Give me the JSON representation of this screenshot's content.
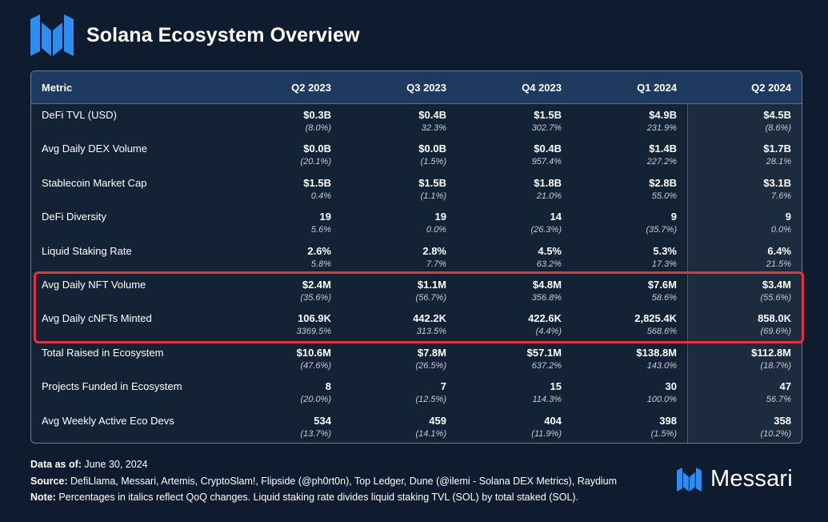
{
  "header": {
    "title": "Solana Ecosystem Overview"
  },
  "table": {
    "columns": [
      "Metric",
      "Q2 2023",
      "Q3 2023",
      "Q4 2023",
      "Q1 2024",
      "Q2 2024"
    ],
    "rows": [
      {
        "metric": "DeFi TVL (USD)",
        "values": [
          "$0.3B",
          "$0.4B",
          "$1.5B",
          "$4.9B",
          "$4.5B"
        ],
        "changes": [
          "(8.0%)",
          "32.3%",
          "302.7%",
          "231.9%",
          "(8.6%)"
        ]
      },
      {
        "metric": "Avg Daily DEX Volume",
        "values": [
          "$0.0B",
          "$0.0B",
          "$0.4B",
          "$1.4B",
          "$1.7B"
        ],
        "changes": [
          "(20.1%)",
          "(1.5%)",
          "957.4%",
          "227.2%",
          "28.1%"
        ]
      },
      {
        "metric": "Stablecoin Market Cap",
        "values": [
          "$1.5B",
          "$1.5B",
          "$1.8B",
          "$2.8B",
          "$3.1B"
        ],
        "changes": [
          "0.4%",
          "(1.1%)",
          "21.0%",
          "55.0%",
          "7.6%"
        ]
      },
      {
        "metric": "DeFi Diversity",
        "values": [
          "19",
          "19",
          "14",
          "9",
          "9"
        ],
        "changes": [
          "5.6%",
          "0.0%",
          "(26.3%)",
          "(35.7%)",
          "0.0%"
        ]
      },
      {
        "metric": "Liquid Staking Rate",
        "values": [
          "2.6%",
          "2.8%",
          "4.5%",
          "5.3%",
          "6.4%"
        ],
        "changes": [
          "5.8%",
          "7.7%",
          "63.2%",
          "17.3%",
          "21.5%"
        ]
      },
      {
        "metric": "Avg Daily NFT Volume",
        "values": [
          "$2.4M",
          "$1.1M",
          "$4.8M",
          "$7.6M",
          "$3.4M"
        ],
        "changes": [
          "(35.6%)",
          "(56.7%)",
          "356.8%",
          "58.6%",
          "(55.6%)"
        ]
      },
      {
        "metric": "Avg Daily cNFTs Minted",
        "values": [
          "106.9K",
          "442.2K",
          "422.6K",
          "2,825.4K",
          "858.0K"
        ],
        "changes": [
          "3369.5%",
          "313.5%",
          "(4.4%)",
          "568.6%",
          "(69.6%)"
        ]
      },
      {
        "metric": "Total Raised in Ecosystem",
        "values": [
          "$10.6M",
          "$7.8M",
          "$57.1M",
          "$138.8M",
          "$112.8M"
        ],
        "changes": [
          "(47.6%)",
          "(26.5%)",
          "637.2%",
          "143.0%",
          "(18.7%)"
        ]
      },
      {
        "metric": "Projects Funded in Ecosystem",
        "values": [
          "8",
          "7",
          "15",
          "30",
          "47"
        ],
        "changes": [
          "(20.0%)",
          "(12.5%)",
          "114.3%",
          "100.0%",
          "56.7%"
        ]
      },
      {
        "metric": "Avg Weekly Active Eco Devs",
        "values": [
          "534",
          "459",
          "404",
          "398",
          "358"
        ],
        "changes": [
          "(13.7%)",
          "(14.1%)",
          "(11.9%)",
          "(1.5%)",
          "(10.2%)"
        ]
      }
    ]
  },
  "footer": {
    "data_as_of_label": "Data as of:",
    "data_as_of_value": " June 30, 2024",
    "source_label": "Source:",
    "source_value": " DefiLlama, Messari, Artemis, CryptoSlam!, Flipside (@ph0rt0n), Top Ledger, Dune (@ilemi - Solana DEX Metrics), Raydium",
    "note_label": "Note:",
    "note_value": " Percentages in italics reflect QoQ changes. Liquid staking rate divides liquid staking TVL (SOL) by total staked (SOL)."
  },
  "brand": {
    "name": "Messari",
    "logo_icon": "messari-logo-icon"
  },
  "colors": {
    "accent_blue": "#2f8cf0",
    "highlight_red": "#e0353c",
    "header_bg": "#1e3a5e"
  }
}
